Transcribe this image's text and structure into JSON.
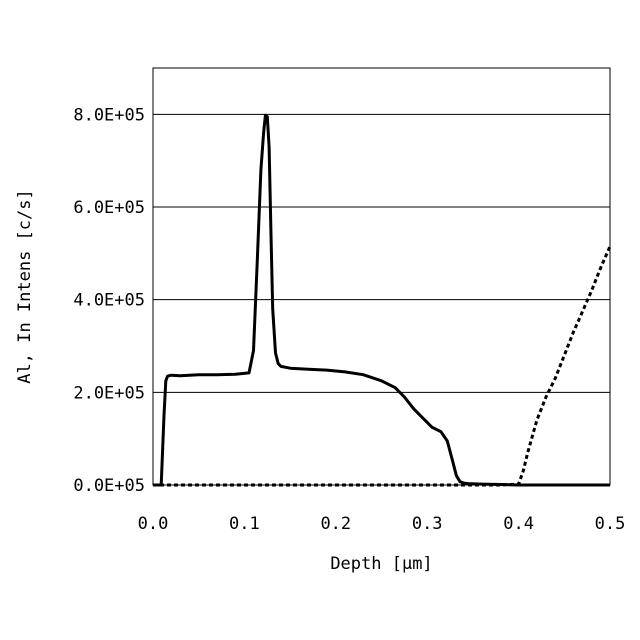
{
  "chart_data": {
    "type": "line",
    "xlabel": "Depth [μm]",
    "ylabel": "Al, In Intens [c/s]",
    "xlim": [
      0,
      0.5
    ],
    "ylim": [
      0,
      900000
    ],
    "x_ticks": [
      0.0,
      0.1,
      0.2,
      0.3,
      0.4,
      0.5
    ],
    "x_tick_labels": [
      "0.0",
      "0.1",
      "0.2",
      "0.3",
      "0.4",
      "0.5"
    ],
    "y_ticks": [
      0,
      200000,
      400000,
      600000,
      800000
    ],
    "y_tick_labels": [
      "0.0E+05",
      "2.0E+05",
      "4.0E+05",
      "6.0E+05",
      "8.0E+05"
    ],
    "grid": "horizontal",
    "series": [
      {
        "style": "solid",
        "color": "#000000",
        "x": [
          0.0,
          0.009,
          0.012,
          0.014,
          0.016,
          0.02,
          0.03,
          0.05,
          0.07,
          0.09,
          0.105,
          0.11,
          0.114,
          0.118,
          0.121,
          0.123,
          0.125,
          0.127,
          0.129,
          0.131,
          0.134,
          0.137,
          0.14,
          0.15,
          0.17,
          0.19,
          0.21,
          0.23,
          0.25,
          0.265,
          0.275,
          0.285,
          0.295,
          0.305,
          0.315,
          0.322,
          0.328,
          0.332,
          0.336,
          0.34,
          0.345,
          0.36,
          0.38,
          0.4,
          0.42,
          0.45,
          0.5
        ],
        "y": [
          0,
          0,
          150000,
          225000,
          235000,
          237000,
          236000,
          238000,
          238000,
          239000,
          242000,
          290000,
          480000,
          680000,
          760000,
          798000,
          795000,
          730000,
          550000,
          380000,
          285000,
          262000,
          256000,
          252000,
          250000,
          248000,
          244000,
          238000,
          225000,
          210000,
          190000,
          165000,
          145000,
          125000,
          115000,
          95000,
          50000,
          20000,
          7000,
          4000,
          3000,
          2000,
          1000,
          0,
          0,
          0,
          0
        ]
      },
      {
        "style": "dashed",
        "color": "#000000",
        "x": [
          0.0,
          0.1,
          0.2,
          0.3,
          0.38,
          0.4,
          0.405,
          0.41,
          0.42,
          0.43,
          0.44,
          0.45,
          0.46,
          0.47,
          0.48,
          0.49,
          0.5
        ],
        "y": [
          0,
          0,
          0,
          0,
          0,
          2000,
          30000,
          70000,
          140000,
          190000,
          230000,
          280000,
          330000,
          375000,
          420000,
          470000,
          515000
        ]
      }
    ]
  }
}
